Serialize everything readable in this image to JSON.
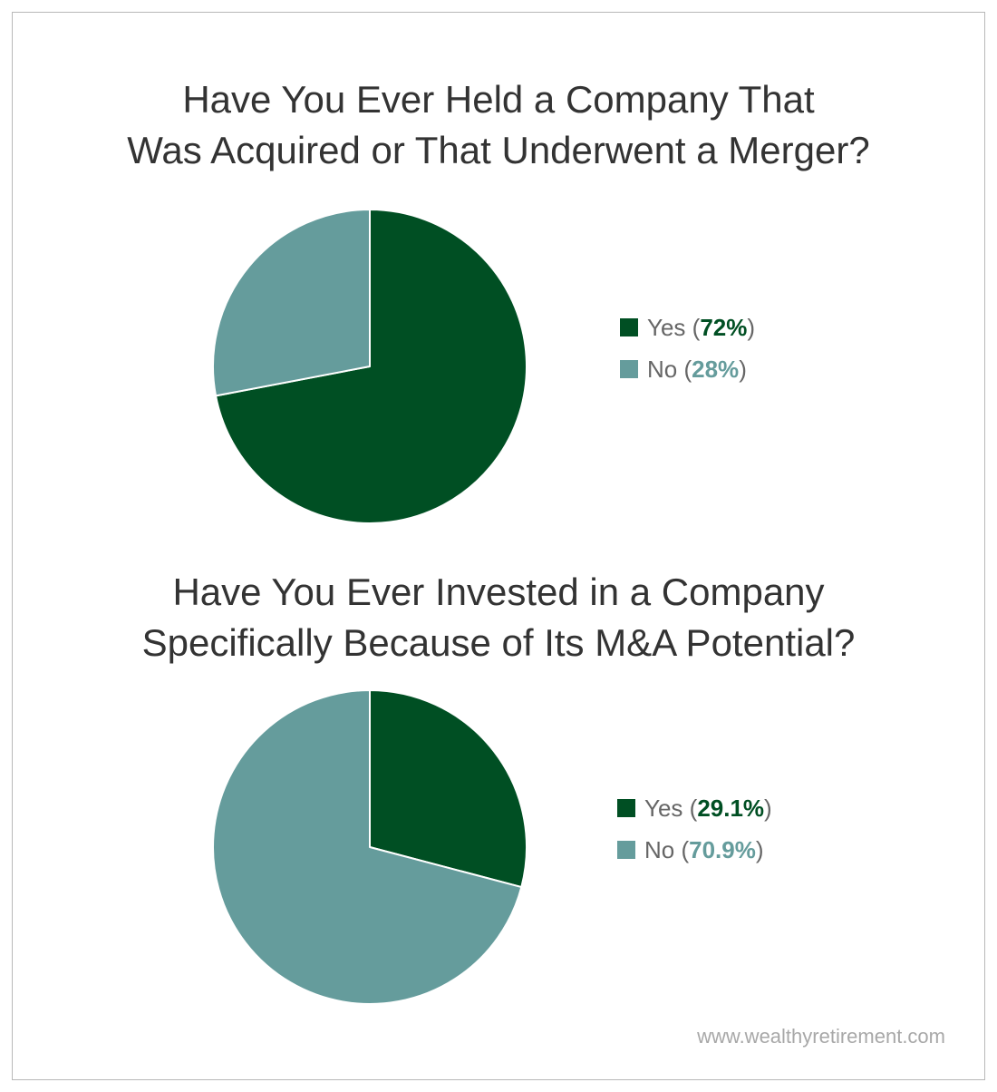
{
  "colors": {
    "yes": "#004f23",
    "no": "#659c9c",
    "title": "#333333",
    "legend_text": "#666666",
    "footer": "#a8a8a8"
  },
  "chart_data": [
    {
      "type": "pie",
      "title_lines": [
        "Have You Ever Held a Company That",
        "Was Acquired or That Underwent a Merger?"
      ],
      "slices": [
        {
          "label": "Yes",
          "value": 72,
          "display": "72%",
          "color": "#004f23"
        },
        {
          "label": "No",
          "value": 28,
          "display": "28%",
          "color": "#659c9c"
        }
      ],
      "legend": "right"
    },
    {
      "type": "pie",
      "title_lines": [
        "Have You Ever Invested in a Company",
        "Specifically Because of Its M&A Potential?"
      ],
      "slices": [
        {
          "label": "Yes",
          "value": 29.1,
          "display": "29.1%",
          "color": "#004f23"
        },
        {
          "label": "No",
          "value": 70.9,
          "display": "70.9%",
          "color": "#659c9c"
        }
      ],
      "legend": "right"
    }
  ],
  "footer": {
    "website": "www.wealthyretirement.com"
  }
}
